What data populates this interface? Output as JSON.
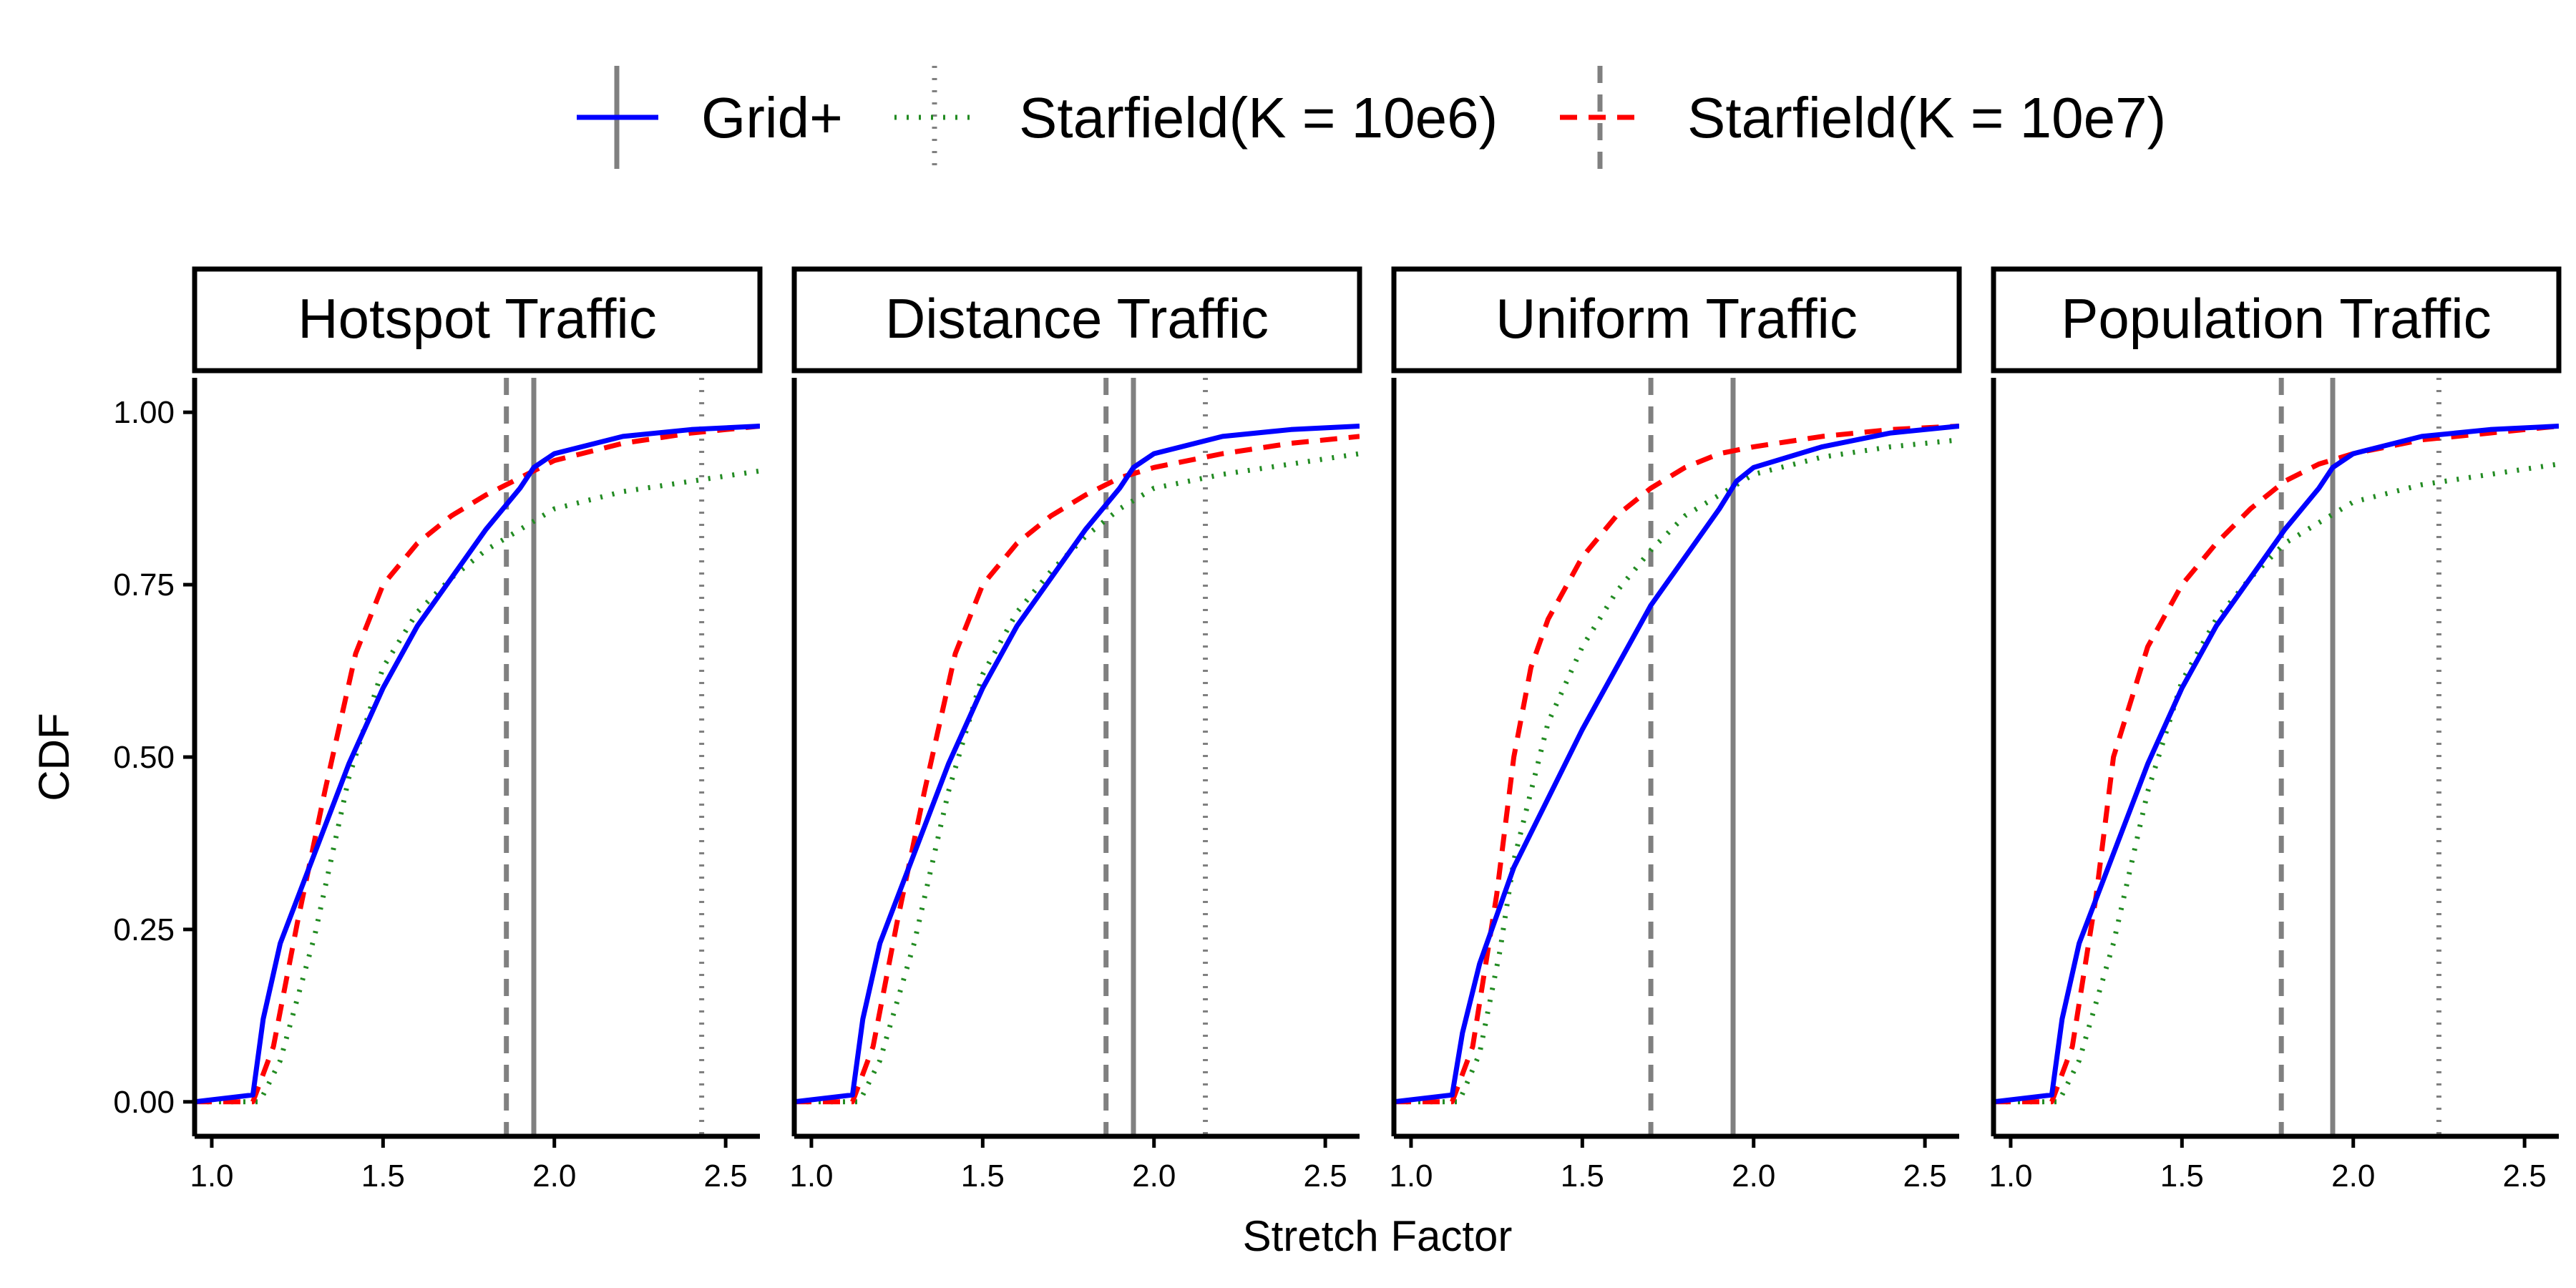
{
  "chart_data": {
    "type": "line",
    "subtype": "faceted ECDF",
    "xlabel": "Stretch Factor",
    "ylabel": "CDF",
    "xlim": [
      0.95,
      2.6
    ],
    "ylim": [
      -0.05,
      1.05
    ],
    "x_ticks": [
      "1.0",
      "1.5",
      "2.0",
      "2.5"
    ],
    "y_ticks": [
      "0.00",
      "0.25",
      "0.50",
      "0.75",
      "1.00"
    ],
    "legend": {
      "position": "top",
      "entries": [
        {
          "label": "Grid+",
          "color": "#0000ff",
          "linetype": "solid"
        },
        {
          "label": "Starfield(K = 10e6)",
          "color": "#228b22",
          "linetype": "dotted"
        },
        {
          "label": "Starfield(K = 10e7)",
          "color": "#ff0000",
          "linetype": "dashed"
        }
      ]
    },
    "panels": [
      {
        "title": "Hotspot Traffic",
        "vlines": {
          "Grid+": 1.94,
          "Starfield(K = 10e6)": 2.43,
          "Starfield(K = 10e7)": 1.86
        },
        "series": [
          {
            "name": "Grid+",
            "points": [
              [
                0.95,
                0
              ],
              [
                1.12,
                0.01
              ],
              [
                1.15,
                0.12
              ],
              [
                1.2,
                0.23
              ],
              [
                1.3,
                0.36
              ],
              [
                1.4,
                0.49
              ],
              [
                1.5,
                0.6
              ],
              [
                1.6,
                0.69
              ],
              [
                1.7,
                0.76
              ],
              [
                1.8,
                0.83
              ],
              [
                1.9,
                0.89
              ],
              [
                1.94,
                0.92
              ],
              [
                2.0,
                0.94
              ],
              [
                2.2,
                0.965
              ],
              [
                2.4,
                0.975
              ],
              [
                2.6,
                0.98
              ]
            ]
          },
          {
            "name": "Starfield(K = 10e6)",
            "points": [
              [
                0.95,
                0
              ],
              [
                1.14,
                0
              ],
              [
                1.2,
                0.06
              ],
              [
                1.3,
                0.24
              ],
              [
                1.4,
                0.47
              ],
              [
                1.5,
                0.63
              ],
              [
                1.6,
                0.71
              ],
              [
                1.7,
                0.76
              ],
              [
                1.8,
                0.8
              ],
              [
                1.9,
                0.83
              ],
              [
                2.0,
                0.86
              ],
              [
                2.2,
                0.885
              ],
              [
                2.4,
                0.9
              ],
              [
                2.6,
                0.915
              ]
            ]
          },
          {
            "name": "Starfield(K = 10e7)",
            "points": [
              [
                0.95,
                0
              ],
              [
                1.12,
                0
              ],
              [
                1.18,
                0.08
              ],
              [
                1.25,
                0.26
              ],
              [
                1.33,
                0.45
              ],
              [
                1.42,
                0.65
              ],
              [
                1.5,
                0.75
              ],
              [
                1.6,
                0.81
              ],
              [
                1.7,
                0.85
              ],
              [
                1.8,
                0.88
              ],
              [
                1.9,
                0.905
              ],
              [
                2.0,
                0.93
              ],
              [
                2.2,
                0.955
              ],
              [
                2.4,
                0.97
              ],
              [
                2.6,
                0.98
              ]
            ]
          }
        ]
      },
      {
        "title": "Distance Traffic",
        "vlines": {
          "Grid+": 1.94,
          "Starfield(K = 10e6)": 2.15,
          "Starfield(K = 10e7)": 1.86
        },
        "series": [
          {
            "name": "Grid+",
            "points": [
              [
                0.95,
                0
              ],
              [
                1.12,
                0.01
              ],
              [
                1.15,
                0.12
              ],
              [
                1.2,
                0.23
              ],
              [
                1.3,
                0.36
              ],
              [
                1.4,
                0.49
              ],
              [
                1.5,
                0.6
              ],
              [
                1.6,
                0.69
              ],
              [
                1.7,
                0.76
              ],
              [
                1.8,
                0.83
              ],
              [
                1.9,
                0.89
              ],
              [
                1.94,
                0.92
              ],
              [
                2.0,
                0.94
              ],
              [
                2.2,
                0.965
              ],
              [
                2.4,
                0.975
              ],
              [
                2.6,
                0.98
              ]
            ]
          },
          {
            "name": "Starfield(K = 10e6)",
            "points": [
              [
                0.95,
                0
              ],
              [
                1.14,
                0
              ],
              [
                1.2,
                0.06
              ],
              [
                1.3,
                0.23
              ],
              [
                1.4,
                0.45
              ],
              [
                1.5,
                0.62
              ],
              [
                1.6,
                0.71
              ],
              [
                1.7,
                0.77
              ],
              [
                1.8,
                0.82
              ],
              [
                1.9,
                0.86
              ],
              [
                2.0,
                0.89
              ],
              [
                2.2,
                0.91
              ],
              [
                2.4,
                0.925
              ],
              [
                2.6,
                0.94
              ]
            ]
          },
          {
            "name": "Starfield(K = 10e7)",
            "points": [
              [
                0.95,
                0
              ],
              [
                1.12,
                0
              ],
              [
                1.18,
                0.08
              ],
              [
                1.25,
                0.26
              ],
              [
                1.33,
                0.45
              ],
              [
                1.42,
                0.65
              ],
              [
                1.5,
                0.75
              ],
              [
                1.6,
                0.81
              ],
              [
                1.7,
                0.85
              ],
              [
                1.8,
                0.88
              ],
              [
                1.9,
                0.905
              ],
              [
                2.0,
                0.92
              ],
              [
                2.2,
                0.94
              ],
              [
                2.4,
                0.955
              ],
              [
                2.6,
                0.965
              ]
            ]
          }
        ]
      },
      {
        "title": "Uniform Traffic",
        "vlines": {
          "Grid+": 1.94,
          "Starfield(K = 10e6)": 1.94,
          "Starfield(K = 10e7)": 1.7
        },
        "series": [
          {
            "name": "Grid+",
            "points": [
              [
                0.95,
                0
              ],
              [
                1.12,
                0.01
              ],
              [
                1.15,
                0.1
              ],
              [
                1.2,
                0.2
              ],
              [
                1.3,
                0.34
              ],
              [
                1.4,
                0.44
              ],
              [
                1.5,
                0.54
              ],
              [
                1.6,
                0.63
              ],
              [
                1.7,
                0.72
              ],
              [
                1.8,
                0.79
              ],
              [
                1.9,
                0.86
              ],
              [
                1.95,
                0.9
              ],
              [
                2.0,
                0.92
              ],
              [
                2.2,
                0.95
              ],
              [
                2.4,
                0.97
              ],
              [
                2.6,
                0.98
              ]
            ]
          },
          {
            "name": "Starfield(K = 10e6)",
            "points": [
              [
                0.95,
                0
              ],
              [
                1.14,
                0
              ],
              [
                1.2,
                0.07
              ],
              [
                1.26,
                0.22
              ],
              [
                1.3,
                0.35
              ],
              [
                1.4,
                0.55
              ],
              [
                1.5,
                0.66
              ],
              [
                1.6,
                0.74
              ],
              [
                1.7,
                0.8
              ],
              [
                1.8,
                0.85
              ],
              [
                1.9,
                0.88
              ],
              [
                2.0,
                0.91
              ],
              [
                2.2,
                0.935
              ],
              [
                2.4,
                0.95
              ],
              [
                2.6,
                0.96
              ]
            ]
          },
          {
            "name": "Starfield(K = 10e7)",
            "points": [
              [
                0.95,
                0
              ],
              [
                1.12,
                0
              ],
              [
                1.18,
                0.08
              ],
              [
                1.25,
                0.3
              ],
              [
                1.3,
                0.5
              ],
              [
                1.35,
                0.63
              ],
              [
                1.4,
                0.7
              ],
              [
                1.5,
                0.79
              ],
              [
                1.6,
                0.85
              ],
              [
                1.7,
                0.89
              ],
              [
                1.8,
                0.92
              ],
              [
                1.9,
                0.94
              ],
              [
                2.0,
                0.95
              ],
              [
                2.2,
                0.965
              ],
              [
                2.4,
                0.975
              ],
              [
                2.6,
                0.98
              ]
            ]
          }
        ]
      },
      {
        "title": "Population Traffic",
        "vlines": {
          "Grid+": 1.94,
          "Starfield(K = 10e6)": 2.25,
          "Starfield(K = 10e7)": 1.79
        },
        "series": [
          {
            "name": "Grid+",
            "points": [
              [
                0.95,
                0
              ],
              [
                1.12,
                0.01
              ],
              [
                1.15,
                0.12
              ],
              [
                1.2,
                0.23
              ],
              [
                1.3,
                0.36
              ],
              [
                1.4,
                0.49
              ],
              [
                1.5,
                0.6
              ],
              [
                1.6,
                0.69
              ],
              [
                1.7,
                0.76
              ],
              [
                1.8,
                0.83
              ],
              [
                1.9,
                0.89
              ],
              [
                1.94,
                0.92
              ],
              [
                2.0,
                0.94
              ],
              [
                2.2,
                0.965
              ],
              [
                2.4,
                0.975
              ],
              [
                2.6,
                0.98
              ]
            ]
          },
          {
            "name": "Starfield(K = 10e6)",
            "points": [
              [
                0.95,
                0
              ],
              [
                1.14,
                0
              ],
              [
                1.2,
                0.06
              ],
              [
                1.3,
                0.23
              ],
              [
                1.4,
                0.45
              ],
              [
                1.5,
                0.61
              ],
              [
                1.6,
                0.7
              ],
              [
                1.7,
                0.76
              ],
              [
                1.8,
                0.81
              ],
              [
                1.9,
                0.84
              ],
              [
                2.0,
                0.87
              ],
              [
                2.2,
                0.895
              ],
              [
                2.4,
                0.91
              ],
              [
                2.6,
                0.925
              ]
            ]
          },
          {
            "name": "Starfield(K = 10e7)",
            "points": [
              [
                0.95,
                0
              ],
              [
                1.12,
                0
              ],
              [
                1.18,
                0.08
              ],
              [
                1.25,
                0.3
              ],
              [
                1.3,
                0.5
              ],
              [
                1.4,
                0.66
              ],
              [
                1.5,
                0.75
              ],
              [
                1.6,
                0.81
              ],
              [
                1.7,
                0.86
              ],
              [
                1.8,
                0.9
              ],
              [
                1.9,
                0.925
              ],
              [
                2.0,
                0.94
              ],
              [
                2.2,
                0.96
              ],
              [
                2.4,
                0.97
              ],
              [
                2.6,
                0.98
              ]
            ]
          }
        ]
      }
    ]
  }
}
